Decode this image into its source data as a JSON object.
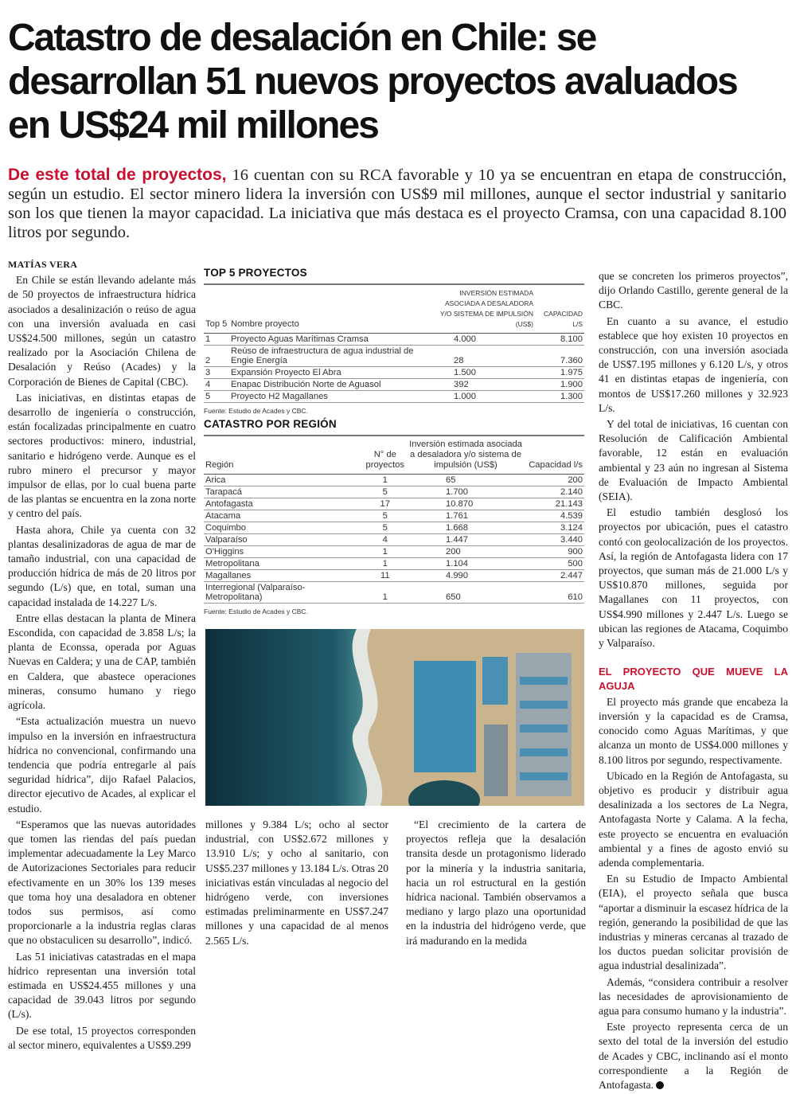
{
  "headline": [
    "Catastro de desalación en Chile: se",
    "desarrollan 51 nuevos proyectos avaluados",
    "en US$24 mil millones"
  ],
  "lead": {
    "kicker": "De este total de proyectos,",
    "text": " 16 cuentan con su RCA favorable y 10 ya se encuentran en etapa de construcción, según un estudio. El sector minero lidera la inversión con US$9 mil millones, aunque el sector industrial y sanitario son los que tienen la mayor capacidad. La iniciativa que más destaca es el proyecto Cramsa, con una capacidad 8.100 litros por segundo."
  },
  "byline": "MATÍAS VERA",
  "col1": [
    "En Chile se están llevando adelante más de 50 proyectos de infraestructura hídrica asociados a desalinización o reúso de agua con una inversión avaluada en casi US$24.500 millones, según un catastro realizado por la Asociación Chilena de Desalación y Reúso (Acades) y la Corporación de Bienes de Capital (CBC).",
    "Las iniciativas, en distintas etapas de desarrollo de ingeniería o construcción, están focalizadas principalmente en cuatro sectores productivos: minero, industrial, sanitario e hidrógeno verde. Aunque es el rubro minero el precursor y mayor impulsor de ellas, por lo cual buena parte de las plantas se encuentra en la zona norte y centro del país.",
    "Hasta ahora, Chile ya cuenta con 32 plantas desalinizadoras de agua de mar de tamaño industrial, con una capacidad de producción hídrica de más de 20 litros por segundo (L/s) que, en total, suman una capacidad instalada de 14.227 L/s.",
    "Entre ellas destacan la planta de Minera Escondida, con capacidad de 3.858 L/s; la planta de Econssa, operada por Aguas Nuevas en Caldera; y una de CAP, también en Caldera, que abastece operaciones mineras, consumo humano y riego agrícola.",
    "“Esta actualización muestra un nuevo impulso en la inversión en infraestructura hídrica no convencional, confirmando una tendencia que podría entregarle al país seguridad hídrica”, dijo Rafael Palacios, director ejecutivo de Acades, al explicar el estudio.",
    "“Esperamos que las nuevas autoridades que tomen las riendas del país puedan implementar adecuadamente la Ley Marco de Autorizaciones Sectoriales para reducir efectivamente en un 30% los 139 meses que toma hoy una desaladora en obtener todos sus permisos, así como proporcionarle a la industria reglas claras que no obstaculicen su desarrollo”, indicó.",
    "Las 51 iniciativas catastradas en el mapa hídrico representan una inversión total estimada en US$24.455 millones y una capacidad de 39.043 litros por segundo (L/s).",
    "De ese total, 15 proyectos corresponden al sector minero, equivalentes a US$9.299"
  ],
  "col2a": "millones y 9.384 L/s; ocho al sector industrial, con US$2.672 millones y 13.910 L/s; y ocho al sanitario, con US$5.237 millones y 13.184 L/s. Otras 20 iniciativas están vinculadas al negocio del hidrógeno verde, con inversiones estimadas preliminarmente en US$7.247 millones y una capacidad de al menos 2.565 L/s.",
  "col2b": "“El crecimiento de la cartera de proyectos refleja que la desalación transita desde un protagonismo liderado por la minería y la industria sanitaria, hacia un rol estructural en la gestión hídrica nacional. También observamos a mediano y largo plazo una oportunidad en la industria del hidrógeno verde, que irá madurando en la medida",
  "col3": [
    "que se concreten los primeros proyectos”, dijo Orlando Castillo, gerente general de la CBC.",
    "En cuanto a su avance, el estudio establece que hoy existen 10 proyectos en construcción, con una inversión asociada de US$7.195 millones y 6.120 L/s, y otros 41 en distintas etapas de ingeniería, con montos de US$17.260 millones y 32.923 L/s.",
    "Y del total de iniciativas, 16 cuentan con Resolución de Calificación Ambiental favorable, 12 están en evaluación ambiental y 23 aún no ingresan al Sistema de Evaluación de Impacto Ambiental (SEIA).",
    "El estudio también desglosó los proyectos por ubicación, pues el catastro contó con geolocalización de los proyectos. Así, la región de Antofagasta lidera con 17 proyectos, que suman más de 21.000 L/s y US$10.870 millones, seguida por Magallanes con 11 proyectos, con US$4.990 millones y 2.447 L/s. Luego se ubican las regiones de Atacama, Coquimbo y Valparaíso."
  ],
  "subhead": "EL PROYECTO QUE MUEVE LA AGUJA",
  "col3b": [
    "El proyecto más grande que encabeza la inversión y la capacidad es de Cramsa, conocido como Aguas Marítimas, y que alcanza un monto de US$4.000 millones y 8.100 litros por segundo, respectivamente.",
    "Ubicado en la Región de Antofagasta, su objetivo es producir y distribuir agua desalinizada a los sectores de La Negra, Antofagasta Norte y Calama. A la fecha, este proyecto se encuentra en evaluación ambiental y a fines de agosto envió su adenda complementaria.",
    "En su Estudio de Impacto Ambiental (EIA), el proyecto señala que busca “aportar a disminuir la escasez hídrica de la región, generando la posibilidad de que las industrias y mineras cercanas al trazado de los ductos puedan solicitar provisión de agua industrial desalinizada”.",
    "Además, “considera contribuir a resolver las necesidades de aprovisionamiento de agua para consumo humano y la industria”.",
    "Este proyecto representa cerca de un sexto del total de la inversión del estudio de Acades y CBC, inclinando así el monto correspondiente a la Región de Antofagasta."
  ],
  "top5": {
    "title": "TOP 5 PROYECTOS",
    "headers": [
      "Top 5",
      "Nombre proyecto",
      "Inversión estimada asociada a desaladora y/o sistema de impulsión (US$)",
      "Capacidad l/s"
    ],
    "rows": [
      [
        "1",
        "Proyecto Aguas Marítimas Cramsa",
        "4.000",
        "8.100"
      ],
      [
        "2",
        "Reúso de infraestructura de agua industrial de Engie Energía",
        "28",
        "7.360"
      ],
      [
        "3",
        "Expansión Proyecto El Abra",
        "1.500",
        "1.975"
      ],
      [
        "4",
        "Enapac Distribución Norte de Aguasol",
        "392",
        "1.900"
      ],
      [
        "5",
        "Proyecto H2 Magallanes",
        "1.000",
        "1.300"
      ]
    ],
    "source": "Fuente: Estudio de Acades y CBC."
  },
  "region": {
    "title": "CATASTRO POR REGIÓN",
    "headers": [
      "Región",
      "N° de proyectos",
      "Inversión estimada asociada a desaladora y/o sistema de impulsión (US$)",
      "Capacidad l/s"
    ],
    "rows": [
      [
        "Arica",
        "1",
        "65",
        "200"
      ],
      [
        "Tarapacá",
        "5",
        "1.700",
        "2.140"
      ],
      [
        "Antofagasta",
        "17",
        "10.870",
        "21.143"
      ],
      [
        "Atacama",
        "5",
        "1.761",
        "4.539"
      ],
      [
        "Coquimbo",
        "5",
        "1.668",
        "3.124"
      ],
      [
        "Valparaíso",
        "4",
        "1.447",
        "3.440"
      ],
      [
        "O'Higgins",
        "1",
        "200",
        "900"
      ],
      [
        "Metropolitana",
        "1",
        "1.104",
        "500"
      ],
      [
        "Magallanes",
        "11",
        "4.990",
        "2.447"
      ],
      [
        "Interregional (Valparaíso- Metropolitana)",
        "1",
        "650",
        "610"
      ]
    ],
    "source": "Fuente: Estudio de Acades y CBC."
  },
  "colors": {
    "accent": "#c8102e",
    "text": "#1a1a1a"
  }
}
